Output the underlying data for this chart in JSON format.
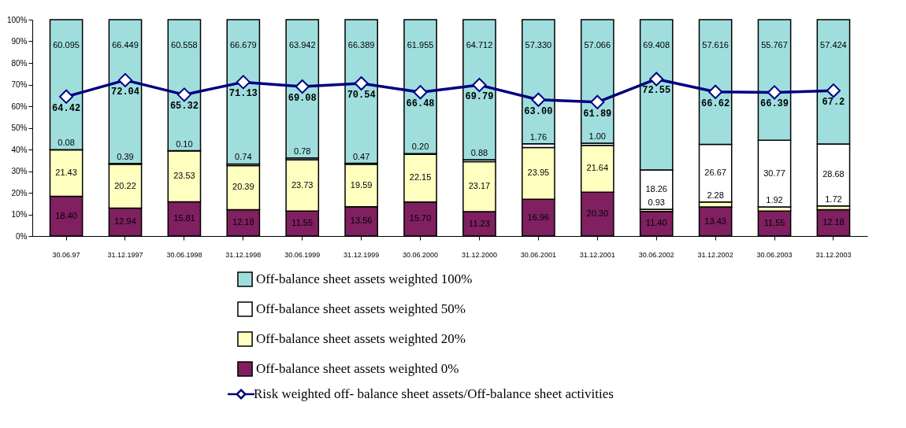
{
  "chart_data": {
    "type": "bar",
    "stacked": true,
    "categories": [
      "30.06.97",
      "31.12.1997",
      "30.06.1998",
      "31.12.1998",
      "30.06.1999",
      "31.12.1999",
      "30.06.2000",
      "31.12.2000",
      "30.06.2001",
      "31.12.2001",
      "30.06.2002",
      "31.12.2002",
      "30.06.2003",
      "31.12.2003"
    ],
    "series": [
      {
        "name": "Off-balance sheet assets weighted 0%",
        "color": "#802060",
        "values": [
          18.4,
          12.94,
          15.81,
          12.18,
          11.55,
          13.56,
          15.7,
          11.23,
          16.96,
          20.3,
          11.4,
          13.43,
          11.55,
          12.18
        ],
        "value_labels": [
          "18.40",
          "12.94",
          "15.81",
          "12.18",
          "11.55",
          "13.56",
          "15.70",
          "11.23",
          "16.96",
          "20.30",
          "11.40",
          "13.43",
          "11.55",
          "12.18"
        ]
      },
      {
        "name": "Off-balance sheet assets weighted 20%",
        "color": "#ffffc0",
        "values": [
          21.43,
          20.22,
          23.53,
          20.39,
          23.73,
          19.59,
          22.15,
          23.17,
          23.95,
          21.64,
          0.93,
          2.28,
          1.92,
          1.72
        ],
        "value_labels": [
          "21.43",
          "20.22",
          "23.53",
          "20.39",
          "23.73",
          "19.59",
          "22.15",
          "23.17",
          "23.95",
          "21.64",
          "0.93",
          "2.28",
          "1.92",
          "1.72"
        ]
      },
      {
        "name": "Off-balance sheet assets weighted 50%",
        "color": "#ffffff",
        "values": [
          0.08,
          0.39,
          0.1,
          0.74,
          0.78,
          0.47,
          0.2,
          0.88,
          1.76,
          1.0,
          18.26,
          26.67,
          30.77,
          28.68
        ],
        "value_labels": [
          "0.08",
          "0.39",
          "0.10",
          "0.74",
          "0.78",
          "0.47",
          "0.20",
          "0.88",
          "1.76",
          "1.00",
          "18.26",
          "26.67",
          "30.77",
          "28.68"
        ]
      },
      {
        "name": "Off-balance sheet assets weighted 100%",
        "color": "#a0dede",
        "values": [
          60.095,
          66.449,
          60.558,
          66.679,
          63.942,
          66.389,
          61.955,
          64.712,
          57.33,
          57.066,
          69.408,
          57.616,
          55.767,
          57.424
        ],
        "value_labels": [
          "60.095",
          "66.449",
          "60.558",
          "66.679",
          "63.942",
          "66.389",
          "61.955",
          "64.712",
          "57.330",
          "57.066",
          "69.408",
          "57.616",
          "55.767",
          "57.424"
        ]
      },
      {
        "name": "Risk weighted off- balance sheet assets/Off-balance sheet activities",
        "type": "line",
        "color": "#000080",
        "marker": "diamond",
        "values": [
          64.42,
          72.04,
          65.32,
          71.13,
          69.08,
          70.54,
          66.48,
          69.79,
          63.0,
          61.89,
          72.55,
          66.62,
          66.39,
          67.2
        ],
        "value_labels": [
          "64.42",
          "72.04",
          "65.32",
          "71.13",
          "69.08",
          "70.54",
          "66.48",
          "69.79",
          "63.00",
          "61.89",
          "72.55",
          "66.62",
          "66.39",
          "67.2"
        ]
      }
    ],
    "ylim": [
      0,
      100
    ],
    "yticks": [
      {
        "value": 0,
        "label": "0%"
      },
      {
        "value": 10,
        "label": "10%"
      },
      {
        "value": 20,
        "label": "20%"
      },
      {
        "value": 30,
        "label": "30%"
      },
      {
        "value": 40,
        "label": "40%"
      },
      {
        "value": 50,
        "label": "50%"
      },
      {
        "value": 60,
        "label": "60%"
      },
      {
        "value": 70,
        "label": "70%"
      },
      {
        "value": 80,
        "label": "80%"
      },
      {
        "value": 90,
        "label": "90%"
      },
      {
        "value": 100,
        "label": "100%"
      }
    ],
    "grid": false,
    "legend": "bottom"
  }
}
